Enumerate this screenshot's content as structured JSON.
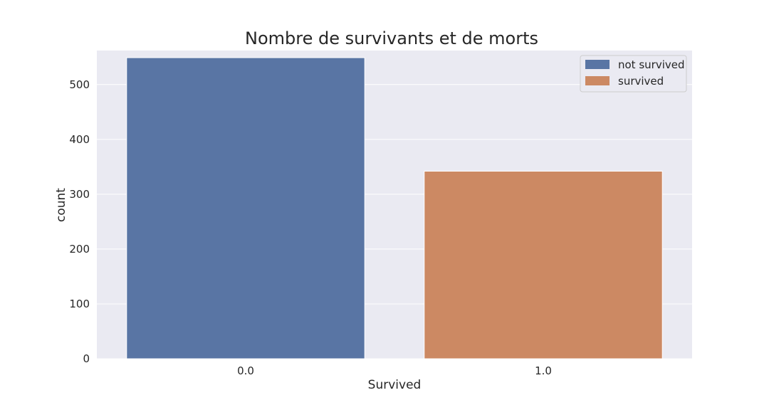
{
  "chart_data": {
    "type": "bar",
    "title": "Nombre de survivants et de morts",
    "xlabel": "Survived",
    "ylabel": "count",
    "categories": [
      "0.0",
      "1.0"
    ],
    "values": [
      549,
      342
    ],
    "ylim": [
      0,
      562
    ],
    "yticks": [
      0,
      100,
      200,
      300,
      400,
      500
    ],
    "grid": true,
    "legend": {
      "placement": "top-right",
      "entries": [
        "not survived",
        "survived"
      ]
    },
    "colors": [
      "#5975a4",
      "#cc8963"
    ],
    "background": "#eaeaf2",
    "grid_color": "#ffffff"
  }
}
